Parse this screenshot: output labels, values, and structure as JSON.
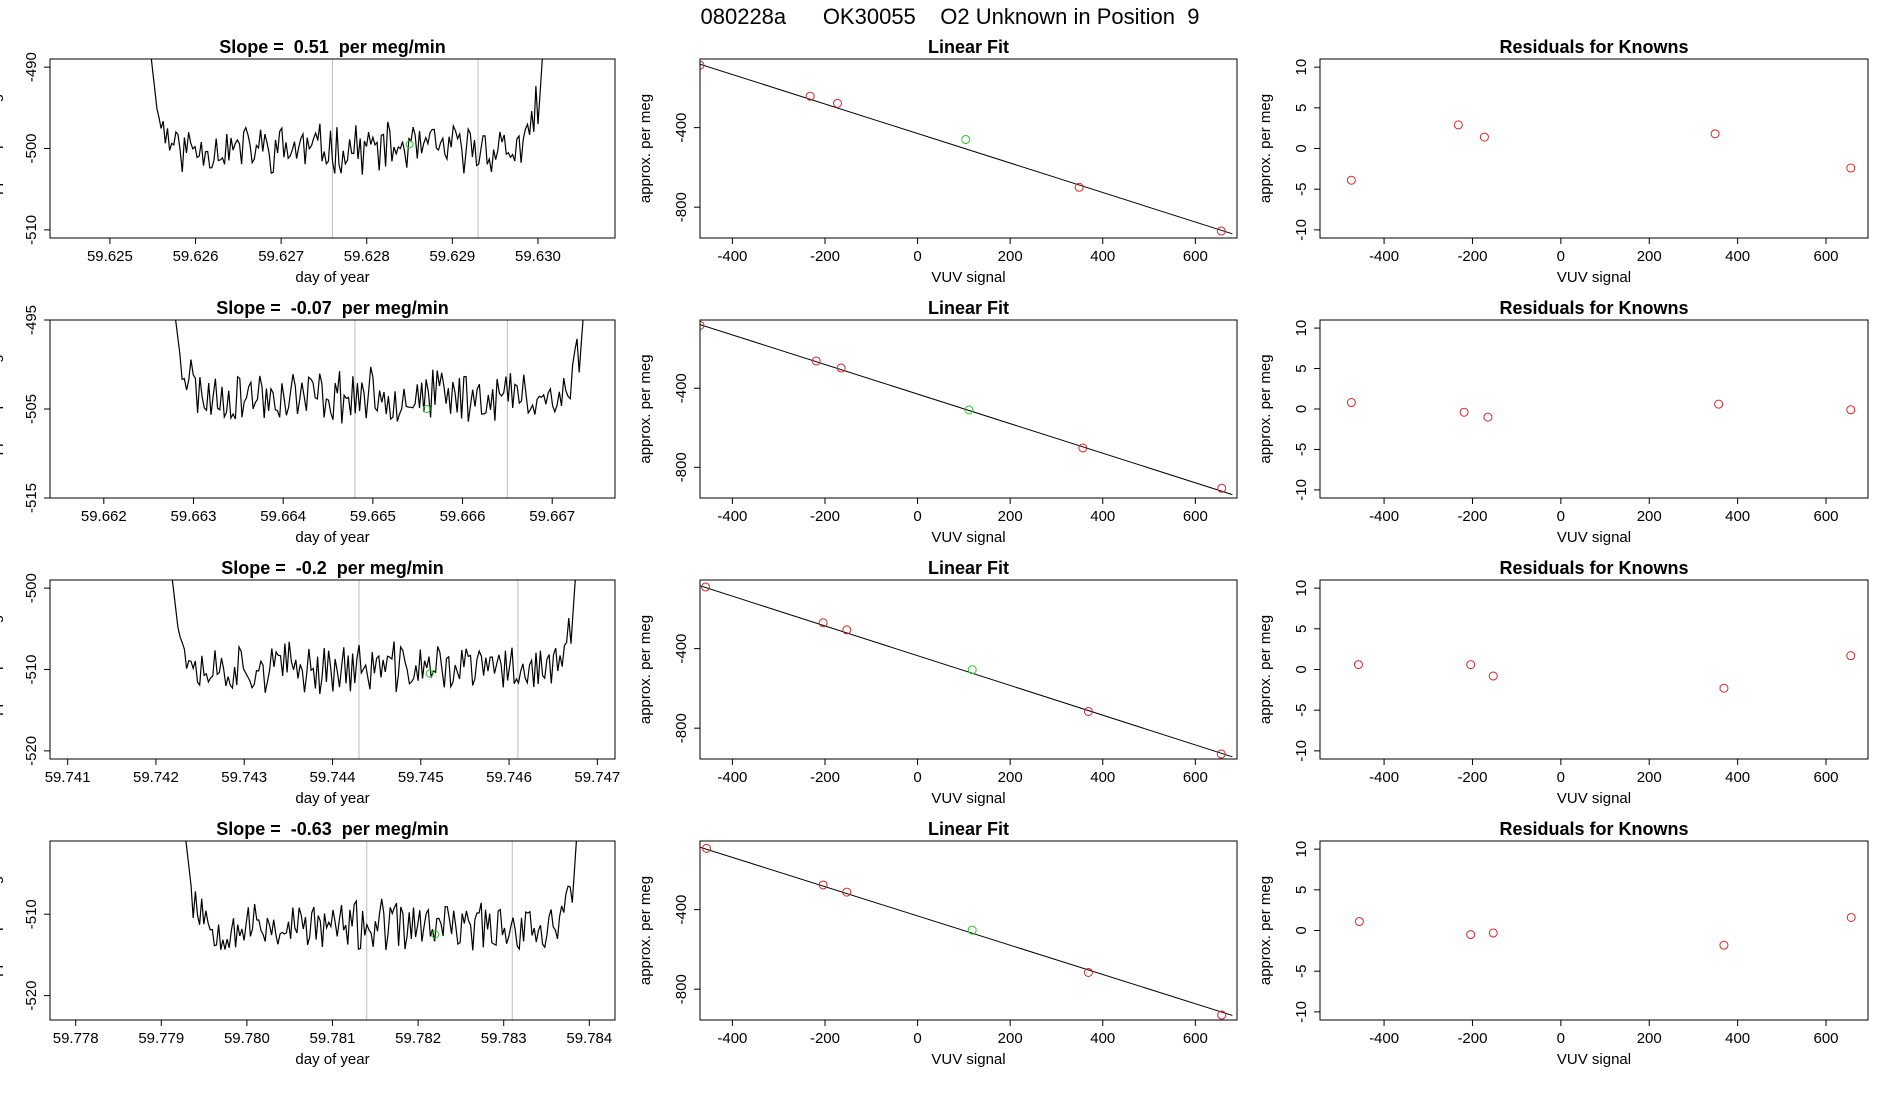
{
  "page_title": "080228a      OK30055    O2 Unknown in Position  9",
  "colors": {
    "line": "#000000",
    "grid": "#bebebe",
    "known": "#d62728",
    "unknown": "#22cc22"
  },
  "chart_data": [
    {
      "type": "line",
      "row": 0,
      "panel": "slope",
      "title": "Slope =  0.51  per meg/min",
      "xlabel": "day of year",
      "ylabel": "approx. per meg",
      "xlim": [
        59.6243,
        59.6309
      ],
      "ylim": [
        -511,
        -489
      ],
      "xticks": [
        59.625,
        59.626,
        59.627,
        59.628,
        59.629,
        59.63
      ],
      "xtick_labels": [
        "59.625",
        "59.626",
        "59.627",
        "59.628",
        "59.629",
        "59.630"
      ],
      "yticks": [
        -490,
        -500,
        -510
      ],
      "ytick_labels": [
        "-490",
        "-500",
        "-510"
      ],
      "vlines": [
        59.6276,
        59.6293
      ],
      "series_start": 59.6254,
      "series_end": 59.6301,
      "noise_base": -500.0,
      "noise_amp": 2.6,
      "seed": 11,
      "unknown_point": {
        "x": 59.6285,
        "y": -499.5
      }
    },
    {
      "type": "scatter",
      "row": 0,
      "panel": "fit",
      "title": "Linear Fit",
      "xlabel": "VUV signal",
      "ylabel": "approx. per meg",
      "xlim": [
        -470,
        690
      ],
      "ylim": [
        -955,
        -55
      ],
      "xticks": [
        -400,
        -200,
        0,
        200,
        400,
        600
      ],
      "xtick_labels": [
        "-400",
        "-200",
        "0",
        "200",
        "400",
        "600"
      ],
      "yticks": [
        -400,
        -800
      ],
      "ytick_labels": [
        "-400",
        "-800"
      ],
      "fit_line": {
        "x": [
          -470,
          680
        ],
        "y": [
          -81,
          -934
        ]
      },
      "knowns": {
        "x": [
          -470,
          -232,
          -173,
          349,
          656
        ],
        "y": [
          -86,
          -242,
          -278,
          -700,
          -920
        ]
      },
      "unknown": {
        "x": 104,
        "y": -460
      }
    },
    {
      "type": "scatter",
      "row": 0,
      "panel": "residuals",
      "title": "Residuals for Knowns",
      "xlabel": "VUV signal",
      "ylabel": "approx. per meg",
      "xlim": [
        -545,
        695
      ],
      "ylim": [
        -11,
        11
      ],
      "xticks": [
        -400,
        -200,
        0,
        200,
        400,
        600
      ],
      "xtick_labels": [
        "-400",
        "-200",
        "0",
        "200",
        "400",
        "600"
      ],
      "yticks": [
        10,
        5,
        0,
        -5,
        -10
      ],
      "ytick_labels": [
        "10",
        "5",
        "0",
        "-5",
        "-10"
      ],
      "points": {
        "x": [
          -474,
          -232,
          -173,
          349,
          656
        ],
        "y": [
          -3.9,
          2.9,
          1.4,
          1.8,
          -2.4
        ]
      }
    },
    {
      "type": "line",
      "row": 1,
      "panel": "slope",
      "title": "Slope =  -0.07  per meg/min",
      "xlabel": "day of year",
      "ylabel": "approx. per meg",
      "xlim": [
        59.6614,
        59.6677
      ],
      "ylim": [
        -515,
        -495
      ],
      "xticks": [
        59.662,
        59.663,
        59.664,
        59.665,
        59.666,
        59.667
      ],
      "xtick_labels": [
        "59.662",
        "59.663",
        "59.664",
        "59.665",
        "59.666",
        "59.667"
      ],
      "yticks": [
        -495,
        -505,
        -515
      ],
      "ytick_labels": [
        "-495",
        "-505",
        "-515"
      ],
      "vlines": [
        59.6648,
        59.6665
      ],
      "series_start": 59.6627,
      "series_end": 59.6674,
      "noise_base": -503.5,
      "noise_amp": 2.6,
      "seed": 23,
      "unknown_point": {
        "x": 59.6656,
        "y": -505.0
      }
    },
    {
      "type": "scatter",
      "row": 1,
      "panel": "fit",
      "title": "Linear Fit",
      "xlabel": "VUV signal",
      "ylabel": "approx. per meg",
      "xlim": [
        -470,
        690
      ],
      "ylim": [
        -955,
        -55
      ],
      "xticks": [
        -400,
        -200,
        0,
        200,
        400,
        600
      ],
      "xtick_labels": [
        "-400",
        "-200",
        "0",
        "200",
        "400",
        "600"
      ],
      "yticks": [
        -400,
        -800
      ],
      "ytick_labels": [
        "-400",
        "-800"
      ],
      "fit_line": {
        "x": [
          -470,
          680
        ],
        "y": [
          -78,
          -938
        ]
      },
      "knowns": {
        "x": [
          -470,
          -219,
          -165,
          357,
          657
        ],
        "y": [
          -82,
          -262,
          -298,
          -702,
          -906
        ]
      },
      "unknown": {
        "x": 111,
        "y": -510
      }
    },
    {
      "type": "scatter",
      "row": 1,
      "panel": "residuals",
      "title": "Residuals for Knowns",
      "xlabel": "VUV signal",
      "ylabel": "approx. per meg",
      "xlim": [
        -545,
        695
      ],
      "ylim": [
        -11,
        11
      ],
      "xticks": [
        -400,
        -200,
        0,
        200,
        400,
        600
      ],
      "xtick_labels": [
        "-400",
        "-200",
        "0",
        "200",
        "400",
        "600"
      ],
      "yticks": [
        10,
        5,
        0,
        -5,
        -10
      ],
      "ytick_labels": [
        "10",
        "5",
        "0",
        "-5",
        "-10"
      ],
      "points": {
        "x": [
          -474,
          -219,
          -165,
          357,
          656
        ],
        "y": [
          0.8,
          -0.4,
          -1.0,
          0.6,
          -0.1
        ]
      }
    },
    {
      "type": "line",
      "row": 2,
      "panel": "slope",
      "title": "Slope =  -0.2  per meg/min",
      "xlabel": "day of year",
      "ylabel": "approx. per meg",
      "xlim": [
        59.7408,
        59.7472
      ],
      "ylim": [
        -521,
        -499
      ],
      "xticks": [
        59.741,
        59.742,
        59.743,
        59.744,
        59.745,
        59.746,
        59.747
      ],
      "xtick_labels": [
        "59.741",
        "59.742",
        "59.743",
        "59.744",
        "59.745",
        "59.746",
        "59.747"
      ],
      "yticks": [
        -500,
        -510,
        -520
      ],
      "ytick_labels": [
        "-500",
        "-510",
        "-520"
      ],
      "vlines": [
        59.7443,
        59.7461
      ],
      "series_start": 59.7421,
      "series_end": 59.7468,
      "noise_base": -509.8,
      "noise_amp": 2.7,
      "seed": 37,
      "unknown_point": {
        "x": 59.7451,
        "y": -510.5
      }
    },
    {
      "type": "scatter",
      "row": 2,
      "panel": "fit",
      "title": "Linear Fit",
      "xlabel": "VUV signal",
      "ylabel": "approx. per meg",
      "xlim": [
        -470,
        690
      ],
      "ylim": [
        -955,
        -55
      ],
      "xticks": [
        -400,
        -200,
        0,
        200,
        400,
        600
      ],
      "xtick_labels": [
        "-400",
        "-200",
        "0",
        "200",
        "400",
        "600"
      ],
      "yticks": [
        -400,
        -800
      ],
      "ytick_labels": [
        "-400",
        "-800"
      ],
      "fit_line": {
        "x": [
          -470,
          680
        ],
        "y": [
          -84,
          -944
        ]
      },
      "knowns": {
        "x": [
          -458,
          -204,
          -153,
          369,
          656
        ],
        "y": [
          -90,
          -270,
          -306,
          -716,
          -930
        ]
      },
      "unknown": {
        "x": 118,
        "y": -506
      }
    },
    {
      "type": "scatter",
      "row": 2,
      "panel": "residuals",
      "title": "Residuals for Knowns",
      "xlabel": "VUV signal",
      "ylabel": "approx. per meg",
      "xlim": [
        -545,
        695
      ],
      "ylim": [
        -11,
        11
      ],
      "xticks": [
        -400,
        -200,
        0,
        200,
        400,
        600
      ],
      "xtick_labels": [
        "-400",
        "-200",
        "0",
        "200",
        "400",
        "600"
      ],
      "yticks": [
        10,
        5,
        0,
        -5,
        -10
      ],
      "ytick_labels": [
        "10",
        "5",
        "0",
        "-5",
        "-10"
      ],
      "points": {
        "x": [
          -458,
          -204,
          -153,
          369,
          656
        ],
        "y": [
          0.6,
          0.6,
          -0.8,
          -2.3,
          1.7
        ]
      }
    },
    {
      "type": "line",
      "row": 3,
      "panel": "slope",
      "title": "Slope =  -0.63  per meg/min",
      "xlabel": "day of year",
      "ylabel": "approx. per meg",
      "xlim": [
        59.7777,
        59.7843
      ],
      "ylim": [
        -523,
        -501
      ],
      "xticks": [
        59.778,
        59.779,
        59.78,
        59.781,
        59.782,
        59.783,
        59.784
      ],
      "xtick_labels": [
        "59.778",
        "59.779",
        "59.780",
        "59.781",
        "59.782",
        "59.783",
        "59.784"
      ],
      "yticks": [
        -510,
        -520
      ],
      "ytick_labels": [
        "-510",
        "-520"
      ],
      "vlines": [
        59.7814,
        59.7831
      ],
      "series_start": 59.7792,
      "series_end": 59.7839,
      "noise_base": -511.5,
      "noise_amp": 2.7,
      "seed": 53,
      "unknown_point": {
        "x": 59.7822,
        "y": -512.5
      }
    },
    {
      "type": "scatter",
      "row": 3,
      "panel": "fit",
      "title": "Linear Fit",
      "xlabel": "VUV signal",
      "ylabel": "approx. per meg",
      "xlim": [
        -470,
        690
      ],
      "ylim": [
        -955,
        -55
      ],
      "xticks": [
        -400,
        -200,
        0,
        200,
        400,
        600
      ],
      "xtick_labels": [
        "-400",
        "-200",
        "0",
        "200",
        "400",
        "600"
      ],
      "yticks": [
        -400,
        -800
      ],
      "ytick_labels": [
        "-400",
        "-800"
      ],
      "fit_line": {
        "x": [
          -470,
          680
        ],
        "y": [
          -86,
          -932
        ]
      },
      "knowns": {
        "x": [
          -456,
          -204,
          -153,
          369,
          657
        ],
        "y": [
          -92,
          -276,
          -312,
          -716,
          -930
        ]
      },
      "unknown": {
        "x": 118,
        "y": -503
      }
    },
    {
      "type": "scatter",
      "row": 3,
      "panel": "residuals",
      "title": "Residuals for Knowns",
      "xlabel": "VUV signal",
      "ylabel": "approx. per meg",
      "xlim": [
        -545,
        695
      ],
      "ylim": [
        -11,
        11
      ],
      "xticks": [
        -400,
        -200,
        0,
        200,
        400,
        600
      ],
      "xtick_labels": [
        "-400",
        "-200",
        "0",
        "200",
        "400",
        "600"
      ],
      "yticks": [
        10,
        5,
        0,
        -5,
        -10
      ],
      "ytick_labels": [
        "10",
        "5",
        "0",
        "-5",
        "-10"
      ],
      "points": {
        "x": [
          -456,
          -204,
          -153,
          369,
          657
        ],
        "y": [
          1.1,
          -0.5,
          -0.3,
          -1.8,
          1.6
        ]
      }
    }
  ]
}
